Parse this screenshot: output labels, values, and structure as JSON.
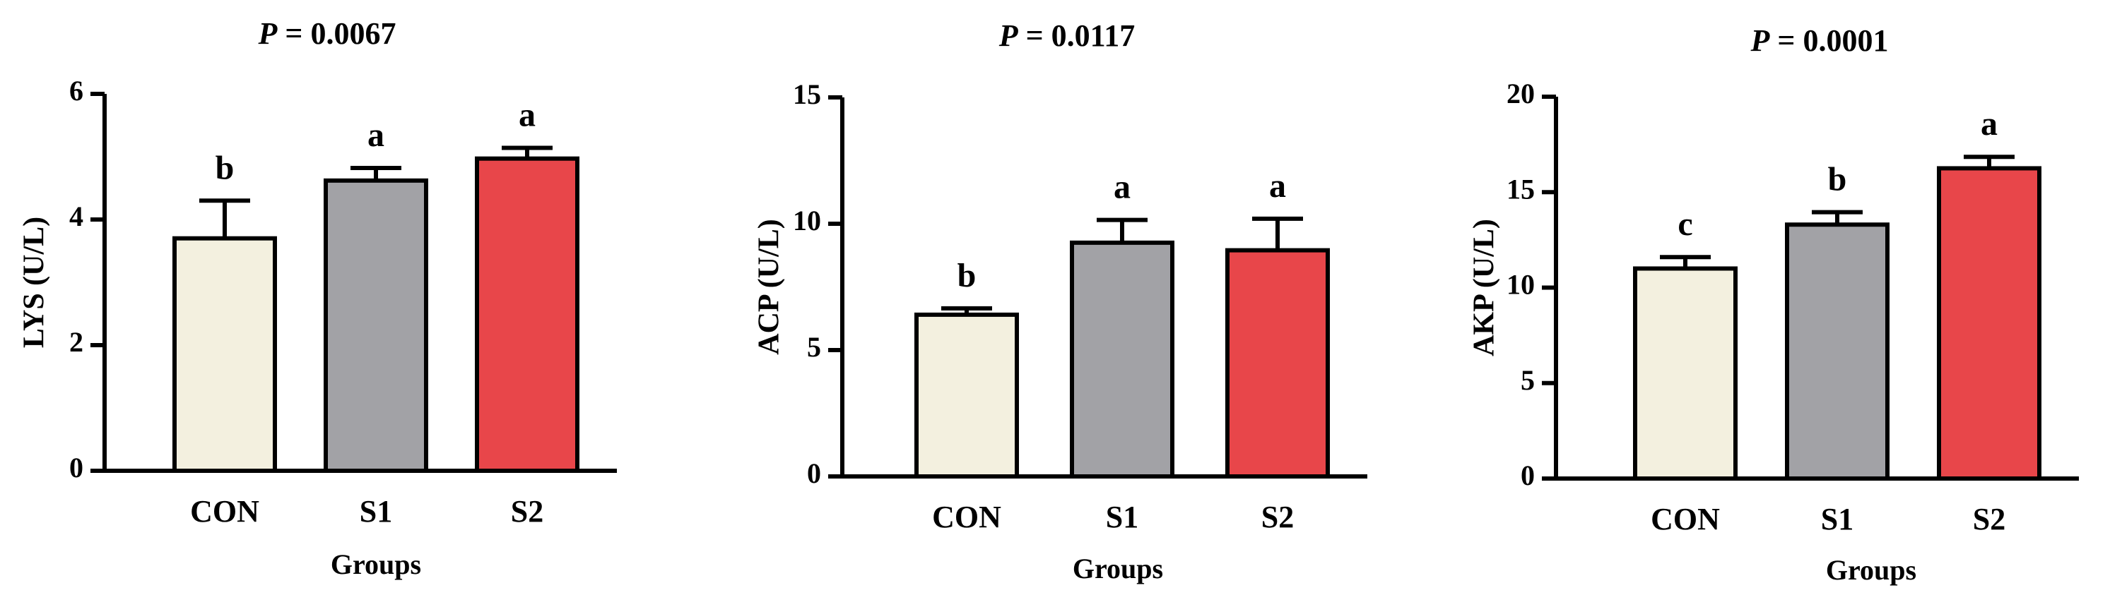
{
  "chart_data": [
    {
      "type": "bar",
      "title": {
        "prefix": "P",
        "rest": " = 0.0067"
      },
      "xlabel": "Groups",
      "ylabel": "LYS (U/L)",
      "ylim": [
        0,
        6
      ],
      "yticks": [
        0,
        2,
        4,
        6
      ],
      "categories": [
        "CON",
        "S1",
        "S2"
      ],
      "values": [
        3.7,
        4.62,
        4.97
      ],
      "errors": [
        0.6,
        0.2,
        0.17
      ],
      "significance": [
        "b",
        "a",
        "a"
      ],
      "colors": [
        "#f3f0df",
        "#a2a2a6",
        "#e8464a"
      ]
    },
    {
      "type": "bar",
      "title": {
        "prefix": "P",
        "rest": " = 0.0117"
      },
      "xlabel": "Groups",
      "ylabel": "ACP (U/L)",
      "ylim": [
        0,
        15
      ],
      "yticks": [
        0,
        5,
        10,
        15
      ],
      "categories": [
        "CON",
        "S1",
        "S2"
      ],
      "values": [
        6.4,
        9.25,
        8.95
      ],
      "errors": [
        0.25,
        0.9,
        1.25
      ],
      "significance": [
        "b",
        "a",
        "a"
      ],
      "colors": [
        "#f3f0df",
        "#a2a2a6",
        "#e8464a"
      ]
    },
    {
      "type": "bar",
      "title": {
        "prefix": "P",
        "rest": " = 0.0001"
      },
      "xlabel": "Groups",
      "ylabel": "AKP (U/L)",
      "ylim": [
        0,
        20
      ],
      "yticks": [
        0,
        5,
        10,
        15,
        20
      ],
      "categories": [
        "CON",
        "S1",
        "S2"
      ],
      "values": [
        11.0,
        13.3,
        16.25
      ],
      "errors": [
        0.6,
        0.65,
        0.6
      ],
      "significance": [
        "c",
        "b",
        "a"
      ],
      "colors": [
        "#f3f0df",
        "#a2a2a6",
        "#e8464a"
      ]
    }
  ]
}
